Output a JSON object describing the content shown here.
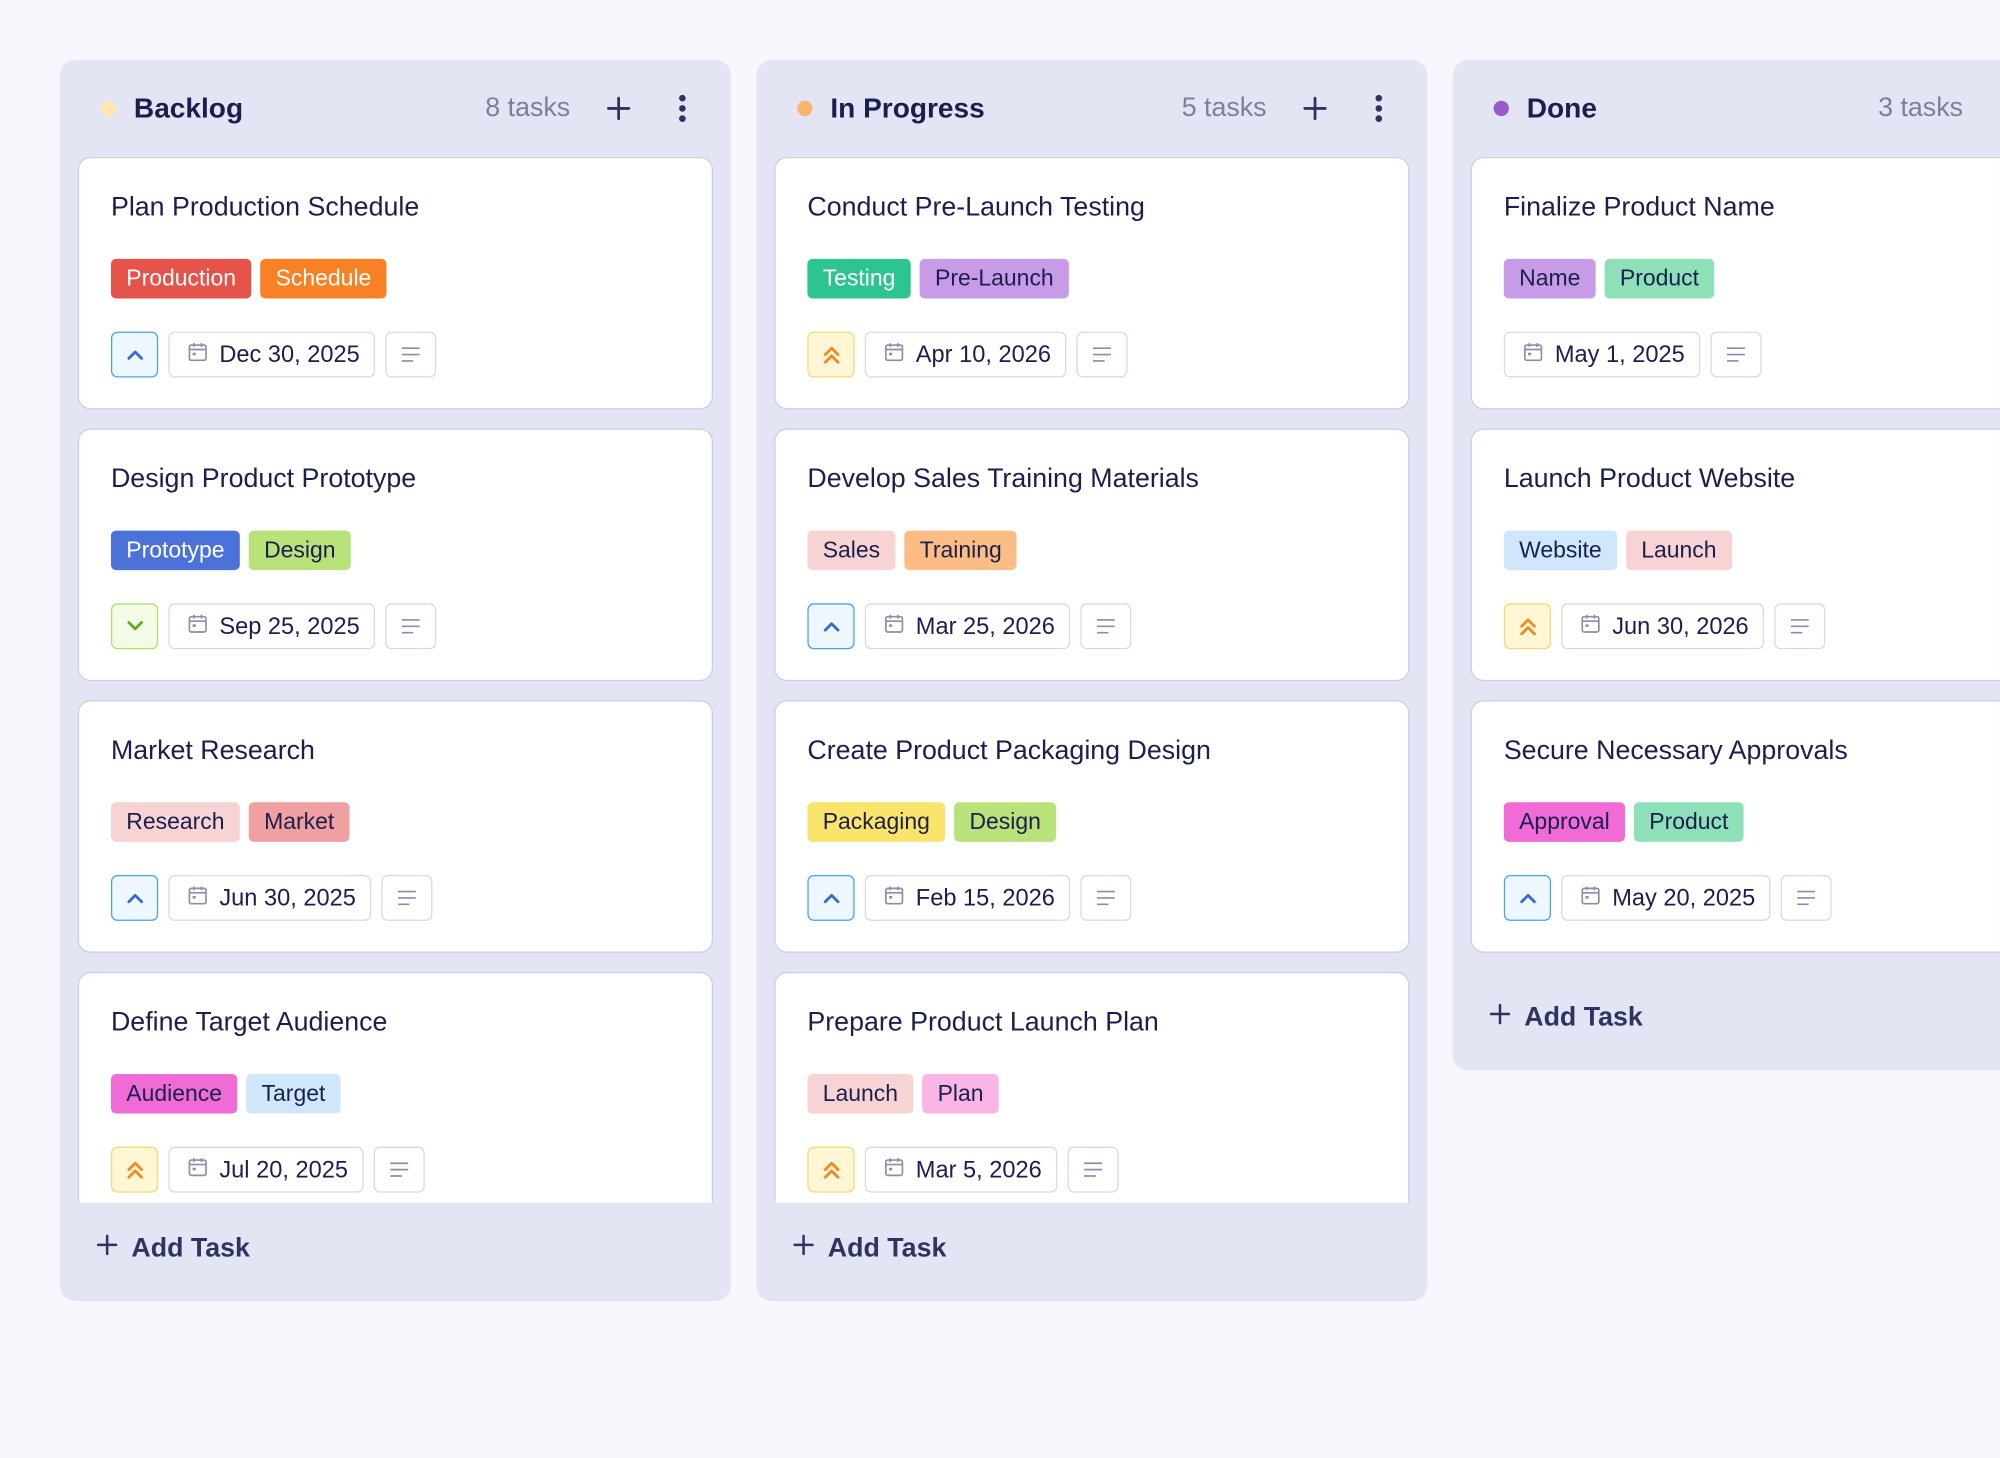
{
  "columns": [
    {
      "title": "Backlog",
      "dot_color": "#fde7ae",
      "count": "8 tasks",
      "add_label": "Add Task",
      "cards": [
        {
          "title": "Plan Production Schedule",
          "priority": "up",
          "date": "Dec 30, 2025",
          "tags": [
            {
              "label": "Production",
              "color": "#e5534b",
              "text_color": "#ffffff"
            },
            {
              "label": "Schedule",
              "color": "#f98125",
              "text_color": "#ffffff"
            }
          ]
        },
        {
          "title": "Design Product Prototype",
          "priority": "down",
          "date": "Sep 25, 2025",
          "tags": [
            {
              "label": "Prototype",
              "color": "#4a72d8",
              "text_color": "#ffffff"
            },
            {
              "label": "Design",
              "color": "#b9e27a",
              "text_color": "#1a1f4e"
            }
          ]
        },
        {
          "title": "Market Research",
          "priority": "up",
          "date": "Jun 30, 2025",
          "tags": [
            {
              "label": "Research",
              "color": "#f8d3d3",
              "text_color": "#1a1f4e"
            },
            {
              "label": "Market",
              "color": "#f0a0a0",
              "text_color": "#1a1f4e"
            }
          ]
        },
        {
          "title": "Define Target Audience",
          "priority": "urgent",
          "date": "Jul 20, 2025",
          "tags": [
            {
              "label": "Audience",
              "color": "#f06bd6",
              "text_color": "#1a1f4e"
            },
            {
              "label": "Target",
              "color": "#cfe6fb",
              "text_color": "#1a1f4e"
            }
          ]
        }
      ]
    },
    {
      "title": "In Progress",
      "dot_color": "#f9b36a",
      "count": "5 tasks",
      "add_label": "Add Task",
      "cards": [
        {
          "title": "Conduct Pre-Launch Testing",
          "priority": "urgent",
          "date": "Apr 10, 2026",
          "tags": [
            {
              "label": "Testing",
              "color": "#2ec492",
              "text_color": "#ffffff"
            },
            {
              "label": "Pre-Launch",
              "color": "#c79be8",
              "text_color": "#1a1f4e"
            }
          ]
        },
        {
          "title": "Develop Sales Training Materials",
          "priority": "up",
          "date": "Mar 25, 2026",
          "tags": [
            {
              "label": "Sales",
              "color": "#f8d3d3",
              "text_color": "#1a1f4e"
            },
            {
              "label": "Training",
              "color": "#fcbd85",
              "text_color": "#1a1f4e"
            }
          ]
        },
        {
          "title": "Create Product Packaging Design",
          "priority": "up",
          "date": "Feb 15, 2026",
          "tags": [
            {
              "label": "Packaging",
              "color": "#fbe46c",
              "text_color": "#1a1f4e"
            },
            {
              "label": "Design",
              "color": "#b9e27a",
              "text_color": "#1a1f4e"
            }
          ]
        },
        {
          "title": "Prepare Product Launch Plan",
          "priority": "urgent",
          "date": "Mar 5, 2026",
          "tags": [
            {
              "label": "Launch",
              "color": "#f8d3d3",
              "text_color": "#1a1f4e"
            },
            {
              "label": "Plan",
              "color": "#f9b5e5",
              "text_color": "#1a1f4e"
            }
          ]
        }
      ]
    },
    {
      "title": "Done",
      "dot_color": "#9b59c9",
      "count": "3 tasks",
      "add_label": "Add Task",
      "cards": [
        {
          "title": "Finalize Product Name",
          "date": "May 1, 2025",
          "tags": [
            {
              "label": "Name",
              "color": "#c79be8",
              "text_color": "#1a1f4e"
            },
            {
              "label": "Product",
              "color": "#8ee0b9",
              "text_color": "#1a1f4e"
            }
          ]
        },
        {
          "title": "Launch Product Website",
          "priority": "urgent",
          "date": "Jun 30, 2026",
          "tags": [
            {
              "label": "Website",
              "color": "#cfe6fb",
              "text_color": "#1a1f4e"
            },
            {
              "label": "Launch",
              "color": "#f8d3d3",
              "text_color": "#1a1f4e"
            }
          ]
        },
        {
          "title": "Secure Necessary Approvals",
          "priority": "up",
          "date": "May 20, 2025",
          "tags": [
            {
              "label": "Approval",
              "color": "#f06bd6",
              "text_color": "#1a1f4e"
            },
            {
              "label": "Product",
              "color": "#8ee0b9",
              "text_color": "#1a1f4e"
            }
          ]
        }
      ]
    }
  ]
}
